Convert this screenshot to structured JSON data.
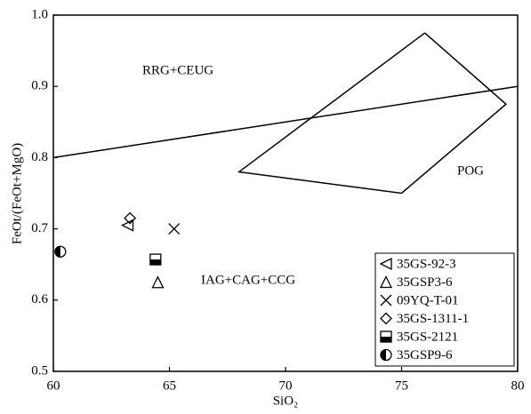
{
  "chart_data": {
    "type": "scatter",
    "xlabel": "SiO₂",
    "ylabel": "FeOt/(FeOt+MgO)",
    "xlim": [
      60,
      80
    ],
    "xticks": [
      60,
      65,
      70,
      75,
      80
    ],
    "ylim": [
      0.5,
      1
    ],
    "yticks": [
      0.5,
      0.6,
      0.7,
      0.8,
      0.9,
      {
        "value": 1,
        "label": "1.0"
      }
    ],
    "annotations": [
      "RRG+CEUG",
      "POG",
      "IAG+CAG+CCG"
    ],
    "field_lines": [
      {
        "x": [
          60,
          80
        ],
        "values": [
          0.8,
          0.9
        ]
      },
      {
        "x": [
          76,
          79.5,
          75,
          68,
          76
        ],
        "values": [
          0.975,
          0.875,
          0.75,
          0.78,
          0.975
        ]
      }
    ],
    "series": [
      {
        "name": "35GS-92-3",
        "marker": "left-triangle",
        "color": "#000000",
        "x": [
          63.2
        ],
        "values": [
          0.705
        ]
      },
      {
        "name": "35GSP3-6",
        "marker": "triangle",
        "color": "#000000",
        "x": [
          64.5
        ],
        "values": [
          0.625
        ]
      },
      {
        "name": "09YQ-T-01",
        "marker": "x",
        "color": "#000000",
        "x": [
          65.2
        ],
        "values": [
          0.7
        ]
      },
      {
        "name": "35GS-1311-1",
        "marker": "diamond",
        "color": "#000000",
        "x": [
          63.3
        ],
        "values": [
          0.715
        ]
      },
      {
        "name": "35GS-2121",
        "marker": "half-square",
        "color": "#000000",
        "x": [
          64.4
        ],
        "values": [
          0.657
        ]
      },
      {
        "name": "35GSP9-6",
        "marker": "half-circle",
        "color": "#000000",
        "x": [
          60.3
        ],
        "values": [
          0.668
        ]
      }
    ]
  }
}
